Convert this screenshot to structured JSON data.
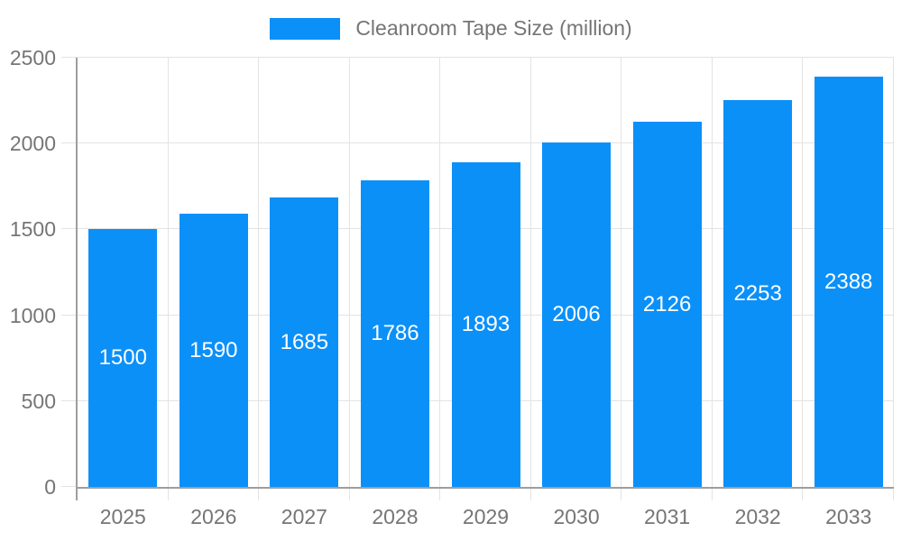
{
  "chart_data": {
    "type": "bar",
    "title": "Cleanroom Tape Size (million)",
    "legend": {
      "position": "top"
    },
    "categories": [
      "2025",
      "2026",
      "2027",
      "2028",
      "2029",
      "2030",
      "2031",
      "2032",
      "2033"
    ],
    "series": [
      {
        "name": "Cleanroom Tape Size (million)",
        "values": [
          1500,
          1590,
          1685,
          1786,
          1893,
          2006,
          2126,
          2253,
          2388
        ]
      }
    ],
    "bar_labels": [
      1500,
      1590,
      1685,
      1786,
      1893,
      2006,
      2126,
      2253,
      2388
    ],
    "xlabel": "",
    "ylabel": "",
    "ylim": [
      0,
      2500
    ],
    "yticks": [
      0,
      500,
      1000,
      1500,
      2000,
      2500
    ],
    "grid": true,
    "colors": {
      "bar": "#0b90f8",
      "bar_label": "#ffffff",
      "grid": "#e3e3e3",
      "axis": "#9e9e9e",
      "tick_text": "#757575",
      "background": "#ffffff"
    }
  }
}
